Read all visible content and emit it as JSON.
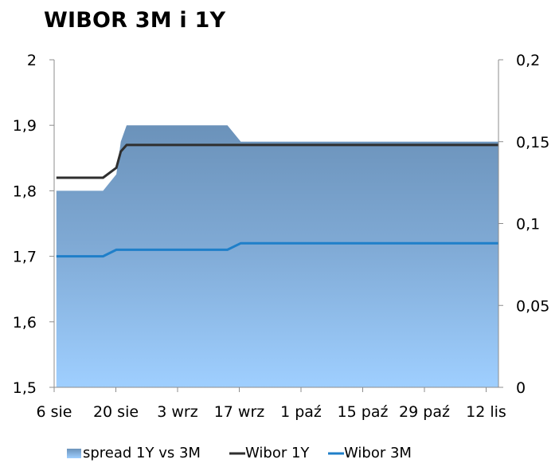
{
  "chart_data": {
    "type": "line",
    "title": "WIBOR 3M i 1Y",
    "x_ticks": [
      "6 sie",
      "20 sie",
      "3 wrz",
      "17 wrz",
      "1 paź",
      "15 paź",
      "29 paź",
      "12 lis"
    ],
    "left_axis": {
      "ylim": [
        1.5,
        2
      ],
      "ticks": [
        "2",
        "1,9",
        "1,8",
        "1,7",
        "1,6",
        "1,5"
      ]
    },
    "right_axis": {
      "ylim": [
        0,
        0.2
      ],
      "ticks": [
        "0,2",
        "0,15",
        "0,1",
        "0,05",
        "0"
      ]
    },
    "x_range_days": [
      0,
      100
    ],
    "series": [
      {
        "name": "spread 1Y vs 3M",
        "kind": "area",
        "axis": "right",
        "color": "#6f98c0",
        "x": [
          0.5,
          11,
          14,
          15,
          16.3,
          39,
          42,
          100
        ],
        "y": [
          0.12,
          0.12,
          0.13,
          0.15,
          0.16,
          0.16,
          0.15,
          0.15
        ]
      },
      {
        "name": "Wibor 1Y",
        "kind": "line",
        "axis": "left",
        "color": "#2f2f2f",
        "x": [
          0.5,
          11,
          14,
          15,
          16.3,
          39,
          42,
          100
        ],
        "y": [
          1.82,
          1.82,
          1.835,
          1.86,
          1.87,
          1.87,
          1.87,
          1.87
        ]
      },
      {
        "name": "Wibor 3M",
        "kind": "line",
        "axis": "left",
        "color": "#1f7fc9",
        "x": [
          0.5,
          11,
          14,
          39,
          42,
          100
        ],
        "y": [
          1.7,
          1.7,
          1.71,
          1.71,
          1.72,
          1.72
        ]
      }
    ],
    "legend": {
      "position": "bottom"
    },
    "grid": false
  }
}
